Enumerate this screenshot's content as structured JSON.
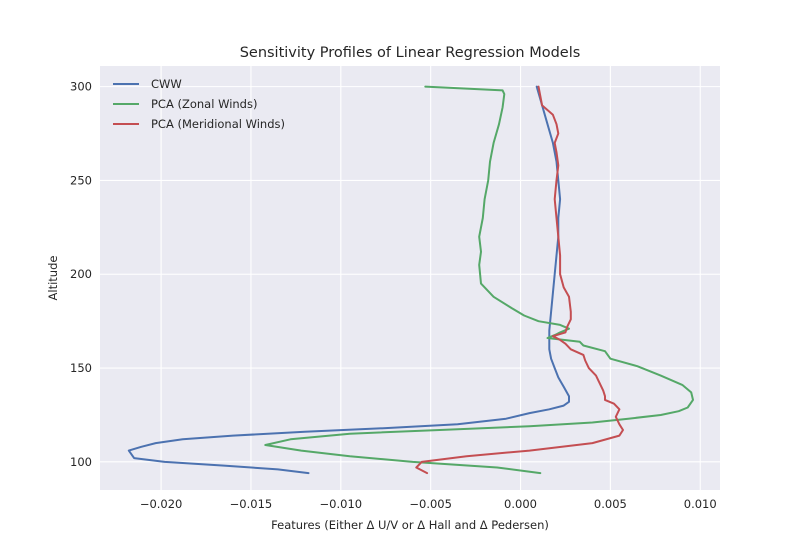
{
  "chart_data": {
    "type": "line",
    "title": "Sensitivity Profiles of Linear Regression Models",
    "xlabel": "Features (Either Δ U/V or Δ Hall and Δ Pedersen)",
    "ylabel": "Altitude",
    "xlim": [
      -0.0234,
      0.0111
    ],
    "ylim": [
      85,
      311
    ],
    "xticks": [
      -0.02,
      -0.015,
      -0.01,
      -0.005,
      0.0,
      0.005,
      0.01
    ],
    "xtick_labels": [
      "−0.020",
      "−0.015",
      "−0.010",
      "−0.005",
      "0.000",
      "0.005",
      "0.010"
    ],
    "yticks": [
      100,
      150,
      200,
      250,
      300
    ],
    "ytick_labels": [
      "100",
      "150",
      "200",
      "250",
      "300"
    ],
    "grid": true,
    "legend_position": "top-left",
    "series": [
      {
        "name": "CWW",
        "color": "#4c72b0",
        "x": [
          -0.0118,
          -0.0135,
          -0.0165,
          -0.0198,
          -0.0215,
          -0.0218,
          -0.0211,
          -0.0203,
          -0.0188,
          -0.016,
          -0.012,
          -0.0075,
          -0.0035,
          -0.0008,
          0.0005,
          0.0016,
          0.0024,
          0.0027,
          0.0027,
          0.0024,
          0.0021,
          0.0019,
          0.0017,
          0.0016,
          0.0016,
          0.0017,
          0.0018,
          0.0019,
          0.002,
          0.0021,
          0.0021,
          0.0022,
          0.0021,
          0.002,
          0.0018,
          0.0015,
          0.0012,
          0.0009
        ],
        "y": [
          94,
          96,
          98,
          100,
          102,
          106,
          108,
          110,
          112,
          114,
          116,
          118,
          120,
          123,
          126,
          128,
          130,
          132,
          135,
          140,
          145,
          150,
          155,
          160,
          170,
          180,
          190,
          200,
          210,
          220,
          230,
          240,
          250,
          260,
          270,
          280,
          290,
          300
        ]
      },
      {
        "name": "PCA (Zonal Winds)",
        "color": "#55a868",
        "x": [
          0.0011,
          -0.0013,
          -0.006,
          -0.0095,
          -0.0122,
          -0.0142,
          -0.0128,
          -0.0095,
          -0.0045,
          0.0005,
          0.004,
          0.006,
          0.0078,
          0.0088,
          0.0093,
          0.0096,
          0.0095,
          0.009,
          0.0078,
          0.0065,
          0.005,
          0.0047,
          0.0035,
          0.0033,
          0.0015,
          0.002,
          0.0022,
          0.0027,
          0.0022,
          0.001,
          0.0002,
          -0.0005,
          -0.0015,
          -0.0022,
          -0.0023,
          -0.0022,
          -0.0023,
          -0.0021,
          -0.002,
          -0.0018,
          -0.0017,
          -0.0015,
          -0.0012,
          -0.001,
          -0.0009,
          -0.001,
          -0.0053
        ],
        "y": [
          94,
          97,
          100,
          103,
          106,
          109,
          112,
          115,
          117,
          119,
          121,
          123,
          125,
          127,
          129,
          133,
          137,
          141,
          146,
          151,
          155,
          159,
          162,
          164,
          166,
          168,
          169,
          171,
          173,
          175,
          178,
          182,
          188,
          195,
          205,
          212,
          220,
          230,
          240,
          250,
          260,
          270,
          280,
          289,
          296,
          298,
          300
        ]
      },
      {
        "name": "PCA (Meridional Winds)",
        "color": "#c44e52",
        "x": [
          -0.0052,
          -0.0058,
          -0.0055,
          -0.003,
          0.0005,
          0.004,
          0.0055,
          0.0057,
          0.0055,
          0.0053,
          0.0055,
          0.0052,
          0.0047,
          0.0047,
          0.0046,
          0.0044,
          0.0042,
          0.0038,
          0.0036,
          0.0035,
          0.0028,
          0.0025,
          0.0022,
          0.0018,
          0.0025,
          0.0026,
          0.0028,
          0.0028,
          0.0027,
          0.0024,
          0.0022,
          0.0022,
          0.0021,
          0.002,
          0.0019,
          0.002,
          0.0021,
          0.002,
          0.0019,
          0.0021,
          0.002,
          0.0018,
          0.0012,
          0.001
        ],
        "y": [
          94,
          97,
          100,
          103,
          106,
          110,
          114,
          117,
          120,
          124,
          128,
          131,
          133,
          135,
          138,
          142,
          146,
          150,
          154,
          157,
          160,
          163,
          165,
          167,
          169,
          172,
          176,
          180,
          188,
          193,
          200,
          210,
          220,
          230,
          240,
          250,
          258,
          265,
          270,
          275,
          280,
          285,
          290,
          300
        ]
      }
    ]
  }
}
